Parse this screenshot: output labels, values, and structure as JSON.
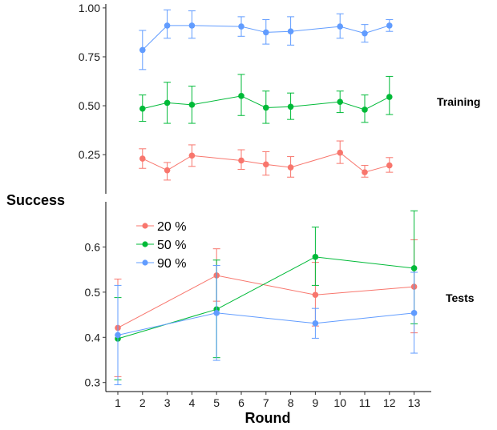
{
  "chart_data": {
    "type": "line",
    "ylabel": "Success",
    "xlabel": "Round",
    "x_ticks": [
      1,
      2,
      3,
      4,
      5,
      6,
      7,
      8,
      9,
      10,
      11,
      12,
      13
    ],
    "legend": {
      "placement": "top-left of bottom panel",
      "entries": [
        "20 %",
        "50 %",
        "90 %"
      ]
    },
    "colors": {
      "20 %": "#F8766D",
      "50 %": "#00BA38",
      "90 %": "#619CFF"
    },
    "panels": [
      {
        "label": "Training",
        "ylim": [
          0.05,
          1.02
        ],
        "y_ticks": [
          0.25,
          0.5,
          0.75,
          1.0
        ],
        "y_tick_labels": [
          "0.25",
          "0.50",
          "0.75",
          "1.00"
        ],
        "series": [
          {
            "name": "20 %",
            "x": [
              2,
              3,
              4,
              6,
              7,
              8,
              10,
              11,
              12
            ],
            "y": [
              0.23,
              0.17,
              0.245,
              0.22,
              0.2,
              0.185,
              0.26,
              0.16,
              0.195
            ],
            "lo": [
              0.18,
              0.12,
              0.19,
              0.175,
              0.145,
              0.135,
              0.205,
              0.135,
              0.16
            ],
            "hi": [
              0.28,
              0.21,
              0.3,
              0.275,
              0.265,
              0.24,
              0.32,
              0.195,
              0.235
            ]
          },
          {
            "name": "50 %",
            "x": [
              2,
              3,
              4,
              6,
              7,
              8,
              10,
              11,
              12
            ],
            "y": [
              0.485,
              0.515,
              0.505,
              0.55,
              0.49,
              0.495,
              0.52,
              0.48,
              0.545
            ],
            "lo": [
              0.42,
              0.41,
              0.41,
              0.45,
              0.41,
              0.43,
              0.465,
              0.415,
              0.455
            ],
            "hi": [
              0.555,
              0.62,
              0.6,
              0.66,
              0.575,
              0.565,
              0.575,
              0.555,
              0.65
            ]
          },
          {
            "name": "90 %",
            "x": [
              2,
              3,
              4,
              6,
              7,
              8,
              10,
              11,
              12
            ],
            "y": [
              0.785,
              0.91,
              0.91,
              0.905,
              0.875,
              0.88,
              0.905,
              0.87,
              0.91
            ],
            "lo": [
              0.685,
              0.845,
              0.845,
              0.855,
              0.815,
              0.81,
              0.845,
              0.825,
              0.88
            ],
            "hi": [
              0.885,
              0.99,
              0.985,
              0.955,
              0.94,
              0.955,
              0.97,
              0.915,
              0.94
            ]
          }
        ]
      },
      {
        "label": "Tests",
        "ylim": [
          0.28,
          0.7
        ],
        "y_ticks": [
          0.3,
          0.4,
          0.5,
          0.6
        ],
        "y_tick_labels": [
          "0.3",
          "0.4",
          "0.5",
          "0.6"
        ],
        "series": [
          {
            "name": "20 %",
            "x": [
              1,
              5,
              9,
              13
            ],
            "y": [
              0.421,
              0.537,
              0.494,
              0.512
            ],
            "lo": [
              0.313,
              0.48,
              0.425,
              0.41
            ],
            "hi": [
              0.529,
              0.596,
              0.566,
              0.616
            ]
          },
          {
            "name": "50 %",
            "x": [
              1,
              5,
              9,
              13
            ],
            "y": [
              0.397,
              0.462,
              0.578,
              0.553
            ],
            "lo": [
              0.306,
              0.355,
              0.515,
              0.43
            ],
            "hi": [
              0.488,
              0.571,
              0.644,
              0.68
            ]
          },
          {
            "name": "90 %",
            "x": [
              1,
              5,
              9,
              13
            ],
            "y": [
              0.405,
              0.454,
              0.431,
              0.454
            ],
            "lo": [
              0.295,
              0.349,
              0.398,
              0.365
            ],
            "hi": [
              0.515,
              0.559,
              0.464,
              0.544
            ]
          }
        ]
      }
    ]
  }
}
